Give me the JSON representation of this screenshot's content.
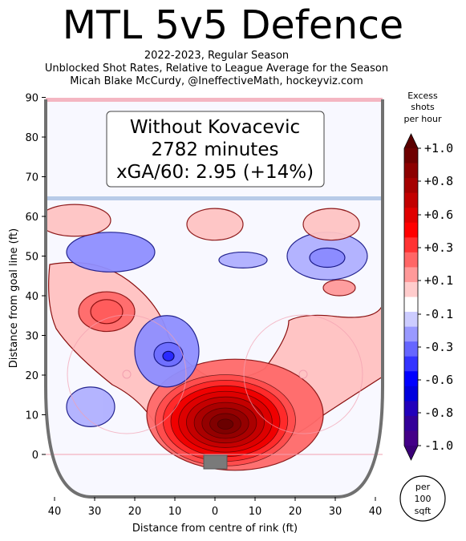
{
  "title": "MTL 5v5 Defence",
  "subtitle_lines": [
    "2022-2023, Regular Season",
    "Unblocked Shot Rates, Relative to League Average for the Season",
    "Micah Blake McCurdy, @IneffectiveMath, hockeyviz.com"
  ],
  "infobox": {
    "line1": "Without Kovacevic",
    "line2": "2782 minutes",
    "line3": "xGA/60: 2.95 (+14%)"
  },
  "colorbar": {
    "title_lines": [
      "Excess",
      "shots",
      "per hour"
    ],
    "tick_labels": [
      "+1.0",
      "+0.8",
      "+0.6",
      "+0.3",
      "+0.1",
      "-0.1",
      "-0.3",
      "-0.6",
      "-0.8",
      "-1.0"
    ],
    "colors": [
      "#6e0000",
      "#8c0000",
      "#a50000",
      "#c20000",
      "#e00000",
      "#ff0000",
      "#ff3333",
      "#ff6666",
      "#ff9999",
      "#ffcccc",
      "#ffffff",
      "#ccccff",
      "#9999ff",
      "#6666ff",
      "#3333ff",
      "#0000ff",
      "#0000dd",
      "#2200bb",
      "#330099",
      "#440088"
    ],
    "unit_lines": [
      "per",
      "100",
      "sqft"
    ]
  },
  "chart_data": {
    "type": "heatmap",
    "title": "MTL 5v5 Defence",
    "xlabel": "Distance from centre of rink (ft)",
    "ylabel": "Distance from goal line (ft)",
    "xlim": [
      42.5,
      -42.5
    ],
    "ylim": [
      -11,
      90
    ],
    "x_ticks": [
      40,
      30,
      20,
      10,
      0,
      10,
      20,
      30,
      40
    ],
    "y_ticks": [
      0,
      10,
      20,
      30,
      40,
      50,
      60,
      70,
      80,
      90
    ],
    "colorbar_range": [
      -1.0,
      1.0
    ],
    "blue_line_y": 64,
    "red_line_y": 89,
    "regions": [
      {
        "x": -3,
        "y": 8,
        "rx": 14,
        "ry": 10,
        "value": 1.0
      },
      {
        "x": -5,
        "y": 10,
        "rx": 22,
        "ry": 14,
        "value": 0.5
      },
      {
        "x": 27,
        "y": 36,
        "rx": 7,
        "ry": 5,
        "value": 0.5
      },
      {
        "x": -31,
        "y": 42,
        "rx": 4,
        "ry": 2,
        "value": 0.3
      },
      {
        "x": 12,
        "y": 26,
        "rx": 8,
        "ry": 9,
        "value": -0.6
      },
      {
        "x": 26,
        "y": 51,
        "rx": 11,
        "ry": 5,
        "value": -0.6
      },
      {
        "x": -7,
        "y": 49,
        "rx": 6,
        "ry": 2,
        "value": -0.3
      },
      {
        "x": -28,
        "y": 50,
        "rx": 10,
        "ry": 6,
        "value": -0.3
      },
      {
        "x": 31,
        "y": 12,
        "rx": 6,
        "ry": 5,
        "value": -0.3
      },
      {
        "x": 35,
        "y": 59,
        "rx": 9,
        "ry": 4,
        "value": 0.1
      },
      {
        "x": 0,
        "y": 58,
        "rx": 7,
        "ry": 4,
        "value": 0.1
      },
      {
        "x": -29,
        "y": 58,
        "rx": 7,
        "ry": 4,
        "value": 0.1
      }
    ]
  }
}
